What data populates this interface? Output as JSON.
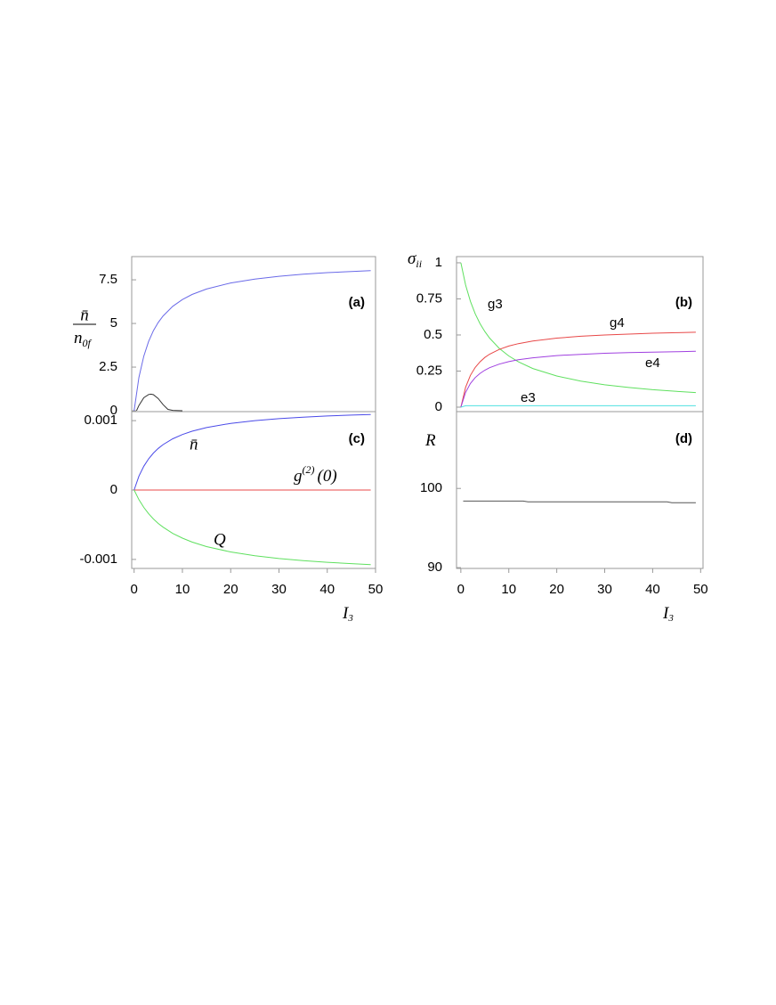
{
  "chart_data": [
    {
      "type": "line",
      "panel_label": "(a)",
      "y_label": {
        "numerator": "n̄",
        "denominator": "n",
        "denominator_sub": "0f"
      },
      "xlim": [
        -0.5,
        50
      ],
      "ylim": [
        -0.05,
        8.83
      ],
      "yticks": [
        0,
        2.5,
        5,
        7.5
      ],
      "series": [
        {
          "color": "#6a6ae8",
          "x": [
            0,
            1,
            2,
            3,
            4,
            5,
            6,
            8,
            10,
            12,
            15,
            20,
            25,
            30,
            35,
            40,
            45,
            49
          ],
          "values": [
            0,
            1.91,
            3.13,
            3.97,
            4.59,
            5.06,
            5.43,
            5.98,
            6.37,
            6.66,
            6.97,
            7.32,
            7.54,
            7.7,
            7.82,
            7.91,
            7.98,
            8.03
          ]
        },
        {
          "color": "#333333",
          "x": [
            0.5,
            1,
            2,
            3,
            3.5,
            4,
            5,
            6,
            7,
            8,
            10
          ],
          "values": [
            0,
            0.3,
            0.75,
            0.93,
            0.95,
            0.92,
            0.7,
            0.35,
            0.08,
            0.02,
            0
          ]
        }
      ]
    },
    {
      "type": "line",
      "panel_label": "(b)",
      "y_label": {
        "text": "σ",
        "sub": "ii"
      },
      "xlim": [
        -0.9,
        50.5
      ],
      "ylim": [
        -0.031,
        1.043
      ],
      "yticks": [
        0,
        0.25,
        0.5,
        0.75,
        1
      ],
      "series": [
        {
          "name": "g3",
          "color": "#5fe05f",
          "x": [
            0,
            1,
            2,
            3,
            4,
            5,
            6,
            8,
            10,
            12,
            15,
            20,
            25,
            30,
            35,
            40,
            45,
            49
          ],
          "values": [
            1,
            0.846,
            0.733,
            0.647,
            0.579,
            0.524,
            0.478,
            0.407,
            0.355,
            0.314,
            0.268,
            0.216,
            0.18,
            0.155,
            0.136,
            0.121,
            0.109,
            0.101
          ]
        },
        {
          "name": "g4",
          "color": "#e84848",
          "x": [
            0,
            1,
            2,
            3,
            4,
            5,
            6,
            8,
            10,
            12,
            15,
            20,
            25,
            30,
            35,
            40,
            45,
            49
          ],
          "values": [
            0,
            0.1375,
            0.22,
            0.275,
            0.314,
            0.344,
            0.367,
            0.4,
            0.423,
            0.44,
            0.458,
            0.478,
            0.491,
            0.5,
            0.506,
            0.512,
            0.516,
            0.519
          ]
        },
        {
          "name": "e4",
          "color": "#a040e0",
          "x": [
            0,
            1,
            2,
            3,
            4,
            5,
            6,
            8,
            10,
            12,
            15,
            20,
            25,
            30,
            35,
            40,
            45,
            49
          ],
          "values": [
            0,
            0.1025,
            0.164,
            0.205,
            0.234,
            0.256,
            0.273,
            0.298,
            0.315,
            0.328,
            0.342,
            0.357,
            0.366,
            0.373,
            0.378,
            0.381,
            0.384,
            0.387
          ]
        },
        {
          "name": "e3",
          "color": "#50e0e0",
          "x": [
            0,
            1,
            5,
            10,
            20,
            30,
            40,
            49
          ],
          "values": [
            0,
            0.01,
            0.01,
            0.01,
            0.01,
            0.01,
            0.01,
            0.01
          ]
        }
      ]
    },
    {
      "type": "line",
      "panel_label": "(c)",
      "x_label": {
        "text": "I",
        "sub": "3"
      },
      "xlim": [
        -0.5,
        50
      ],
      "ylim": [
        -0.00113,
        0.00113
      ],
      "xticks": [
        0,
        10,
        20,
        30,
        40,
        50
      ],
      "yticks": [
        -0.001,
        0,
        0.001
      ],
      "series": [
        {
          "name": "n̄",
          "color": "#4a4ae8",
          "x": [
            0,
            1,
            2,
            3,
            4,
            5,
            6,
            8,
            10,
            12,
            15,
            20,
            25,
            30,
            35,
            40,
            45,
            49
          ],
          "values": [
            0,
            0.0002,
            0.000343,
            0.00045,
            0.000533,
            0.0006,
            0.000655,
            0.000738,
            0.0008,
            0.000847,
            0.0009,
            0.00096,
            0.001,
            0.001029,
            0.00105,
            0.001067,
            0.00108,
            0.001089
          ]
        },
        {
          "label": {
            "base": "g",
            "sup": "(2)",
            "after": "(0)"
          },
          "color": "#e84848",
          "x": [
            0,
            49
          ],
          "values": [
            0,
            0
          ]
        },
        {
          "name": "Q",
          "color": "#5fe05f",
          "x": [
            0,
            1,
            2,
            3,
            4,
            5,
            6,
            8,
            10,
            12,
            15,
            20,
            25,
            30,
            35,
            40,
            45,
            49
          ],
          "values": [
            0,
            -0.000139,
            -0.00025,
            -0.000341,
            -0.000417,
            -0.000481,
            -0.000536,
            -0.000625,
            -0.000694,
            -0.00075,
            -0.000815,
            -0.000893,
            -0.000947,
            -0.000987,
            -0.001017,
            -0.001042,
            -0.001061,
            -0.001075
          ]
        }
      ]
    },
    {
      "type": "line",
      "panel_label": "(d)",
      "y_label": {
        "text": "R"
      },
      "x_label": {
        "text": "I",
        "sub": "3"
      },
      "xlim": [
        -0.9,
        50.5
      ],
      "ylim": [
        89.9,
        109.7
      ],
      "xticks": [
        0,
        10,
        20,
        30,
        40,
        50
      ],
      "yticks": [
        90,
        100
      ],
      "series": [
        {
          "color": "#555555",
          "x": [
            0.5,
            13,
            14,
            43,
            44,
            49
          ],
          "values": [
            98.4,
            98.4,
            98.3,
            98.3,
            98.2,
            98.2
          ]
        }
      ]
    }
  ]
}
